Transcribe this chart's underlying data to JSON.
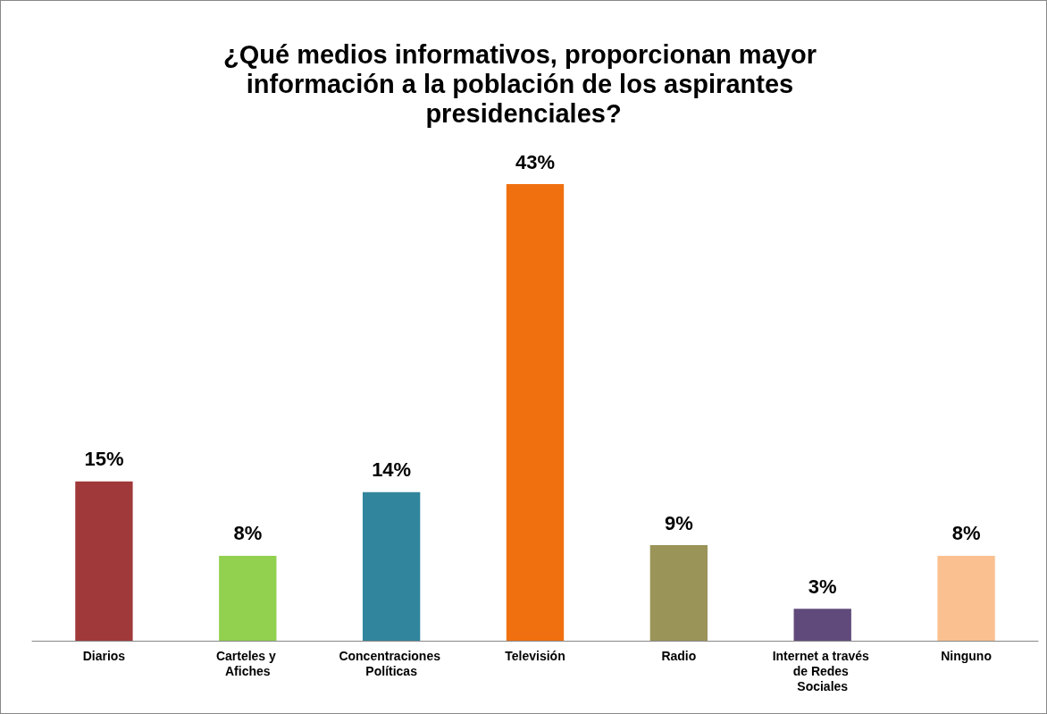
{
  "chart_data": {
    "type": "bar",
    "title": "¿Qué medios informativos, proporcionan mayor información a la población de los aspirantes presidenciales?",
    "categories": [
      "Diarios",
      "Carteles y Afiches",
      "Concentraciones Políticas",
      "Televisión",
      "Radio",
      "Internet a través de Redes Sociales",
      "Ninguno"
    ],
    "values": [
      15,
      8,
      14,
      43,
      9,
      3,
      8
    ],
    "colors": [
      "#a0393a",
      "#92d050",
      "#31859c",
      "#f07010",
      "#9a9459",
      "#604a7b",
      "#fac090"
    ],
    "value_labels": [
      "15%",
      "8%",
      "14%",
      "43%",
      "9%",
      "3%",
      "8%"
    ]
  }
}
